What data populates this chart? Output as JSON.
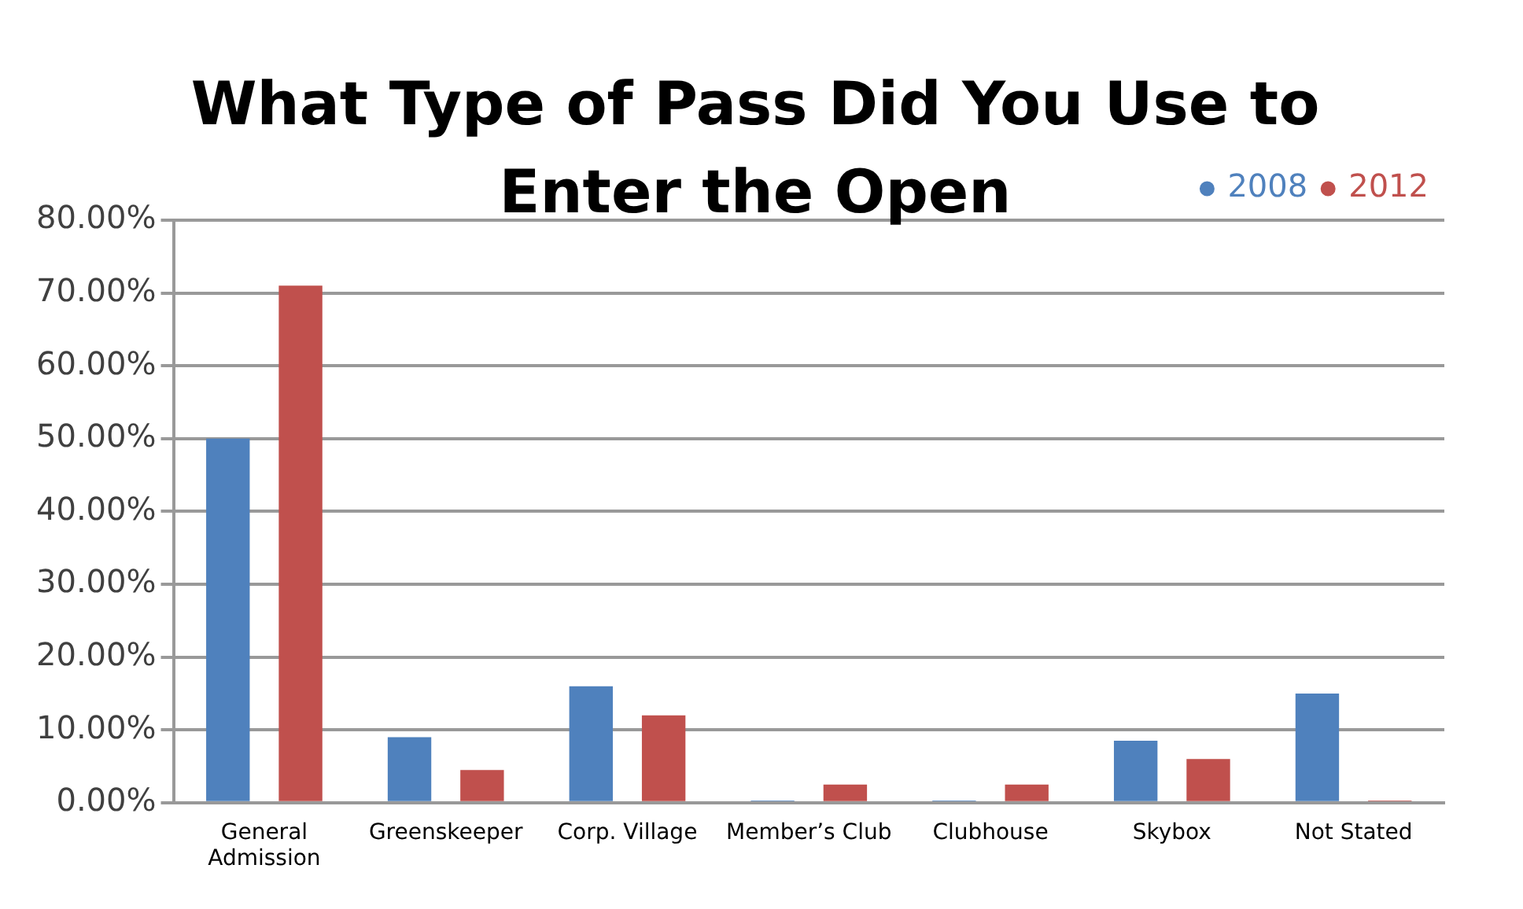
{
  "chart_data": {
    "type": "bar",
    "title": "What Type of Pass Did You Use to Enter the Open",
    "categories": [
      "General Admission",
      "Greenskeeper",
      "Corp. Village",
      "Member’s Club",
      "Clubhouse",
      "Skybox",
      "Not Stated"
    ],
    "series": [
      {
        "name": "2008",
        "color": "#4f81bd",
        "values": [
          50,
          9,
          16,
          0.3,
          0.3,
          8.5,
          15
        ]
      },
      {
        "name": "2012",
        "color": "#c0504d",
        "values": [
          71,
          4.5,
          12,
          2.5,
          2.5,
          6,
          0.3
        ]
      }
    ],
    "ylim": [
      0,
      80
    ],
    "yticks": [
      {
        "value": 0,
        "label": "0.00%"
      },
      {
        "value": 10,
        "label": "10.00%"
      },
      {
        "value": 20,
        "label": "20.00%"
      },
      {
        "value": 30,
        "label": "30.00%"
      },
      {
        "value": 40,
        "label": "40.00%"
      },
      {
        "value": 50,
        "label": "50.00%"
      },
      {
        "value": 60,
        "label": "60.00%"
      },
      {
        "value": 70,
        "label": "70.00%"
      },
      {
        "value": 80,
        "label": "80.00%"
      }
    ],
    "grid": "y",
    "legend": "top right"
  }
}
